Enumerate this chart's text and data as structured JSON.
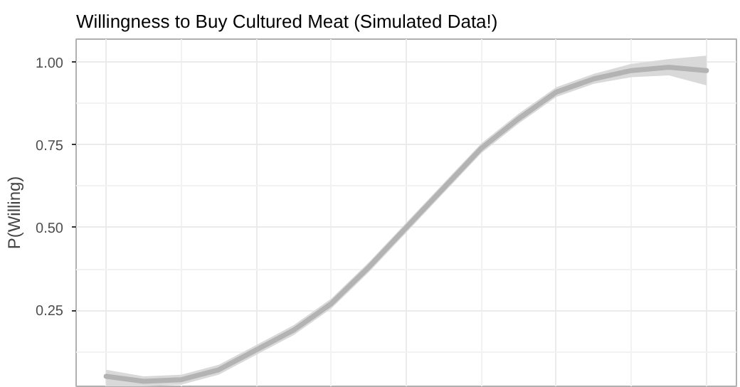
{
  "chart_data": {
    "type": "line",
    "title": "Willingness to Buy Cultured Meat (Simulated Data!)",
    "ylabel": "P(Willing)",
    "categories": [
      null,
      null,
      null,
      null,
      null,
      null,
      null,
      null,
      null,
      null,
      null,
      null,
      null,
      null,
      null,
      null,
      null
    ],
    "series": [
      {
        "color": "#b3b3b3",
        "values": [
          0.05,
          0.035,
          0.04,
          0.07,
          0.13,
          0.19,
          0.27,
          0.38,
          0.5,
          0.62,
          0.74,
          0.83,
          0.91,
          0.95,
          0.975,
          0.985,
          0.975
        ],
        "lower": [
          0.02,
          0.02,
          0.025,
          0.055,
          0.115,
          0.175,
          0.255,
          0.365,
          0.485,
          0.605,
          0.725,
          0.815,
          0.895,
          0.935,
          0.955,
          0.96,
          0.93
        ],
        "upper": [
          0.07,
          0.05,
          0.055,
          0.085,
          0.145,
          0.205,
          0.285,
          0.395,
          0.515,
          0.635,
          0.755,
          0.845,
          0.925,
          0.965,
          0.995,
          1.01,
          1.02
        ]
      }
    ],
    "ylim": [
      0.02,
      1.07
    ],
    "yticks": [
      {
        "value": 0.25,
        "label": "0.25"
      },
      {
        "value": 0.5,
        "label": "0.50"
      },
      {
        "value": 0.75,
        "label": "0.75"
      },
      {
        "value": 1.0,
        "label": "1.00"
      }
    ],
    "tick_labels": "y",
    "grid": true,
    "marker": "none",
    "line_style": "solid"
  }
}
